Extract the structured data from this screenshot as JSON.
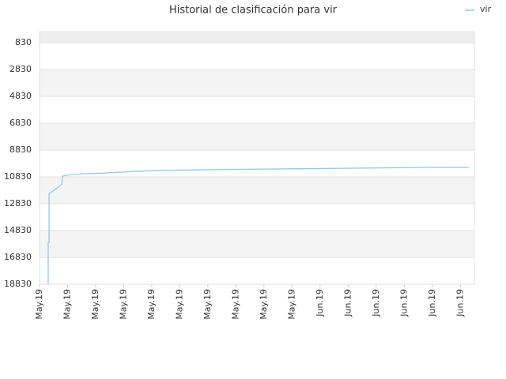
{
  "chart_data": {
    "type": "line",
    "title": "Historial de clasificación para vir",
    "series": [
      {
        "name": "vir",
        "color": "#90c8f0",
        "x": [
          0.31,
          0.31,
          0.34,
          0.34,
          0.79,
          0.82,
          1.13,
          1.69,
          2.31,
          2.87,
          3.46,
          4.08,
          5.72,
          8.45,
          11.18,
          13.92,
          15.3
        ],
        "values": [
          18830,
          15700,
          15700,
          12100,
          11400,
          10770,
          10650,
          10590,
          10540,
          10480,
          10420,
          10360,
          10300,
          10240,
          10180,
          10120,
          10120
        ]
      }
    ],
    "ylim": [
      18830,
      0
    ],
    "yticks": [
      830,
      2830,
      4830,
      6830,
      8830,
      10830,
      12830,
      14830,
      16830,
      18830
    ],
    "xlim": [
      0,
      15.5
    ],
    "xticks": [
      {
        "value": 0,
        "label": "May.19"
      },
      {
        "value": 1,
        "label": "May.19"
      },
      {
        "value": 2,
        "label": "May.19"
      },
      {
        "value": 3,
        "label": "May.19"
      },
      {
        "value": 4,
        "label": "May.19"
      },
      {
        "value": 5,
        "label": "May.19"
      },
      {
        "value": 6,
        "label": "May.19"
      },
      {
        "value": 7,
        "label": "May.19"
      },
      {
        "value": 8,
        "label": "May.19"
      },
      {
        "value": 9,
        "label": "May.19"
      },
      {
        "value": 10,
        "label": "Jun.19"
      },
      {
        "value": 11,
        "label": "Jun.19"
      },
      {
        "value": 12,
        "label": "Jun.19"
      },
      {
        "value": 13,
        "label": "Jun.19"
      },
      {
        "value": 14,
        "label": "Jun.19"
      },
      {
        "value": 15,
        "label": "Jun.19"
      }
    ],
    "grid": true,
    "legend": "top-right"
  }
}
